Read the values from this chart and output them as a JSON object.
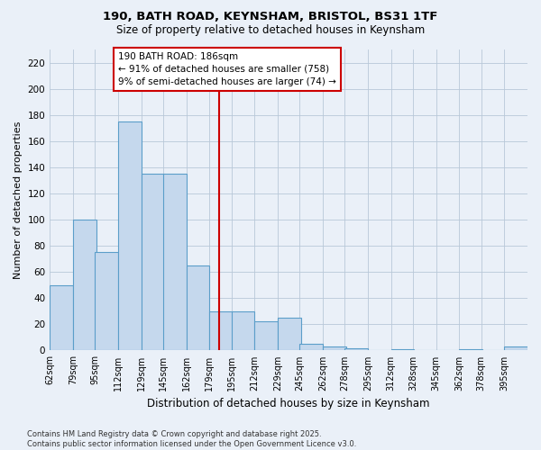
{
  "title_line1": "190, BATH ROAD, KEYNSHAM, BRISTOL, BS31 1TF",
  "title_line2": "Size of property relative to detached houses in Keynsham",
  "xlabel": "Distribution of detached houses by size in Keynsham",
  "ylabel": "Number of detached properties",
  "bin_labels": [
    "62sqm",
    "79sqm",
    "95sqm",
    "112sqm",
    "129sqm",
    "145sqm",
    "162sqm",
    "179sqm",
    "195sqm",
    "212sqm",
    "229sqm",
    "245sqm",
    "262sqm",
    "278sqm",
    "295sqm",
    "312sqm",
    "328sqm",
    "345sqm",
    "362sqm",
    "378sqm",
    "395sqm"
  ],
  "bin_edges": [
    62,
    79,
    95,
    112,
    129,
    145,
    162,
    179,
    195,
    212,
    229,
    245,
    262,
    278,
    295,
    312,
    328,
    345,
    362,
    378,
    395
  ],
  "bar_heights": [
    50,
    100,
    75,
    175,
    135,
    135,
    65,
    30,
    30,
    22,
    25,
    5,
    3,
    2,
    0,
    1,
    0,
    0,
    1,
    0,
    3
  ],
  "bar_color": "#c5d8ed",
  "bar_edge_color": "#5b9ec9",
  "bg_color": "#eaf0f8",
  "grid_color": "#b8c8d8",
  "vline_x": 186,
  "vline_color": "#cc0000",
  "annotation_title": "190 BATH ROAD: 186sqm",
  "annotation_line1": "← 91% of detached houses are smaller (758)",
  "annotation_line2": "9% of semi-detached houses are larger (74) →",
  "annotation_box_edgecolor": "#cc0000",
  "footer_line1": "Contains HM Land Registry data © Crown copyright and database right 2025.",
  "footer_line2": "Contains public sector information licensed under the Open Government Licence v3.0.",
  "ylim": [
    0,
    230
  ],
  "yticks": [
    0,
    20,
    40,
    60,
    80,
    100,
    120,
    140,
    160,
    180,
    200,
    220
  ]
}
